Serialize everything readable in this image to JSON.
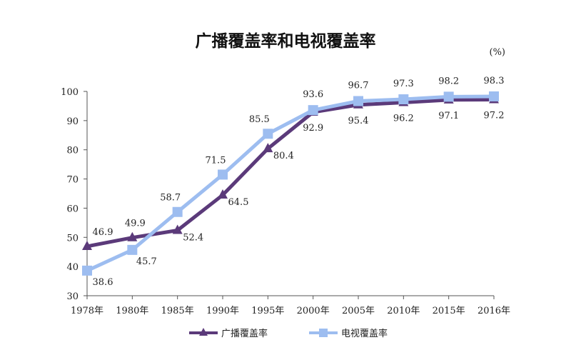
{
  "title": "广播覆盖率和电视覆盖率",
  "unit": "(%)",
  "chart_data": {
    "type": "line",
    "title": "广播覆盖率和电视覆盖率",
    "xlabel": "",
    "ylabel": "",
    "ylim": [
      30,
      100
    ],
    "yticks": [
      30,
      40,
      50,
      60,
      70,
      80,
      90,
      100
    ],
    "categories": [
      "1978年",
      "1980年",
      "1985年",
      "1990年",
      "1995年",
      "2000年",
      "2005年",
      "2010年",
      "2015年",
      "2016年"
    ],
    "legend_position": "bottom",
    "grid": false,
    "series": [
      {
        "name": "广播覆盖率",
        "color": "#5b3a7a",
        "marker": "triangle",
        "values": [
          46.9,
          49.9,
          52.4,
          64.5,
          80.4,
          92.9,
          95.4,
          96.2,
          97.1,
          97.2
        ]
      },
      {
        "name": "电视覆盖率",
        "color": "#9dbdf0",
        "marker": "square",
        "values": [
          38.6,
          45.7,
          58.7,
          71.5,
          85.5,
          93.6,
          96.7,
          97.3,
          98.2,
          98.3
        ]
      }
    ]
  }
}
